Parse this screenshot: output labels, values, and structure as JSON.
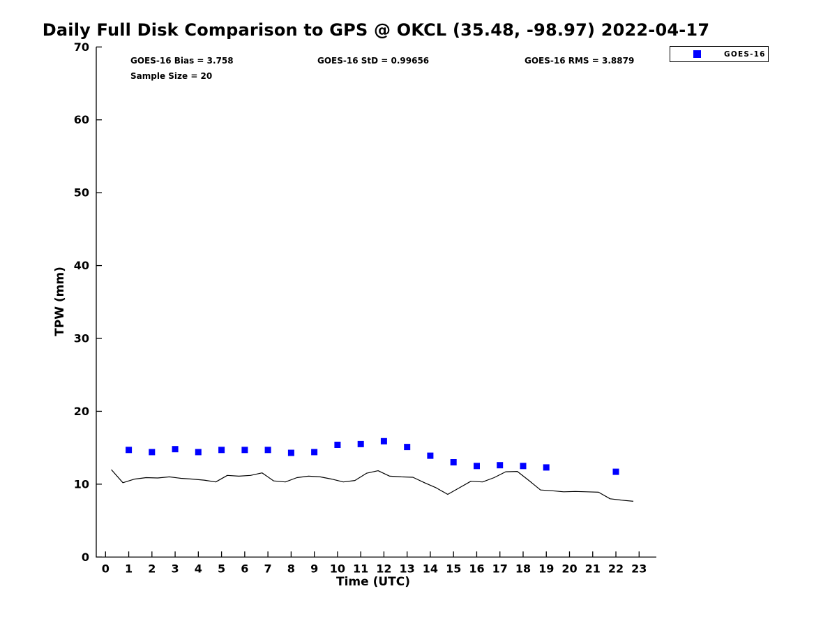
{
  "title": "Daily Full Disk Comparison to GPS @ OKCL (35.48, -98.97) 2022-04-17",
  "annotations": {
    "bias": "GOES-16 Bias = 3.758",
    "std": "GOES-16 StD = 0.99656",
    "rms": "GOES-16 RMS = 3.8879",
    "sample_size": "Sample Size = 20"
  },
  "legend": {
    "position": "top-right",
    "entries": [
      {
        "label": "GOES-16",
        "marker": "square",
        "color": "#0000FF"
      }
    ]
  },
  "colors": {
    "background": "#FFFFFF",
    "text": "#000000",
    "axis": "#000000",
    "gps_line": "#000000",
    "goes16_marker": "#0000FF"
  },
  "chart_data": {
    "type": "scatter",
    "title": "Daily Full Disk Comparison to GPS @ OKCL (35.48, -98.97) 2022-04-17",
    "xlabel": "Time (UTC)",
    "ylabel": "TPW (mm)",
    "xlim": [
      -0.4,
      23.75
    ],
    "ylim": [
      0,
      70
    ],
    "x_ticks": [
      0,
      1,
      2,
      3,
      4,
      5,
      6,
      7,
      8,
      9,
      10,
      11,
      12,
      13,
      14,
      15,
      16,
      17,
      18,
      19,
      20,
      21,
      22,
      23
    ],
    "y_ticks": [
      0,
      10,
      20,
      30,
      40,
      50,
      60,
      70
    ],
    "grid": false,
    "legend_position": "top-right",
    "series": [
      {
        "name": "GOES-16",
        "type": "scatter",
        "marker": "square",
        "color": "#0000FF",
        "x": [
          1,
          2,
          3,
          4,
          5,
          6,
          7,
          8,
          9,
          10,
          11,
          12,
          13,
          14,
          15,
          16,
          17,
          18,
          19,
          22
        ],
        "y": [
          14.7,
          14.4,
          14.8,
          14.4,
          14.7,
          14.7,
          14.7,
          14.3,
          14.4,
          15.4,
          15.5,
          15.9,
          15.1,
          13.9,
          13.0,
          12.5,
          12.6,
          12.5,
          12.3,
          11.7
        ]
      },
      {
        "name": "GPS",
        "type": "line",
        "color": "#000000",
        "x": [
          0.25,
          0.75,
          1.25,
          1.75,
          2.25,
          2.75,
          3.25,
          3.75,
          4.25,
          4.75,
          5.25,
          5.75,
          6.25,
          6.75,
          7.25,
          7.75,
          8.25,
          8.75,
          9.25,
          9.75,
          10.25,
          10.75,
          11.25,
          11.75,
          12.25,
          12.75,
          13.25,
          13.75,
          14.25,
          14.75,
          15.25,
          15.75,
          16.25,
          16.75,
          17.25,
          17.75,
          18.25,
          18.75,
          19.25,
          19.75,
          20.25,
          20.75,
          21.25,
          21.75,
          22.25,
          22.75
        ],
        "y": [
          12.0,
          10.2,
          10.7,
          10.9,
          10.85,
          11.0,
          10.8,
          10.7,
          10.55,
          10.3,
          11.2,
          11.1,
          11.2,
          11.55,
          10.45,
          10.3,
          10.9,
          11.1,
          11.0,
          10.7,
          10.3,
          10.5,
          11.5,
          11.85,
          11.1,
          11.0,
          10.95,
          10.2,
          9.5,
          8.6,
          9.5,
          10.4,
          10.3,
          10.9,
          11.7,
          11.75,
          10.5,
          9.2,
          9.1,
          8.95,
          9.0,
          8.95,
          8.9,
          8.0,
          7.8,
          7.65
        ]
      }
    ]
  }
}
